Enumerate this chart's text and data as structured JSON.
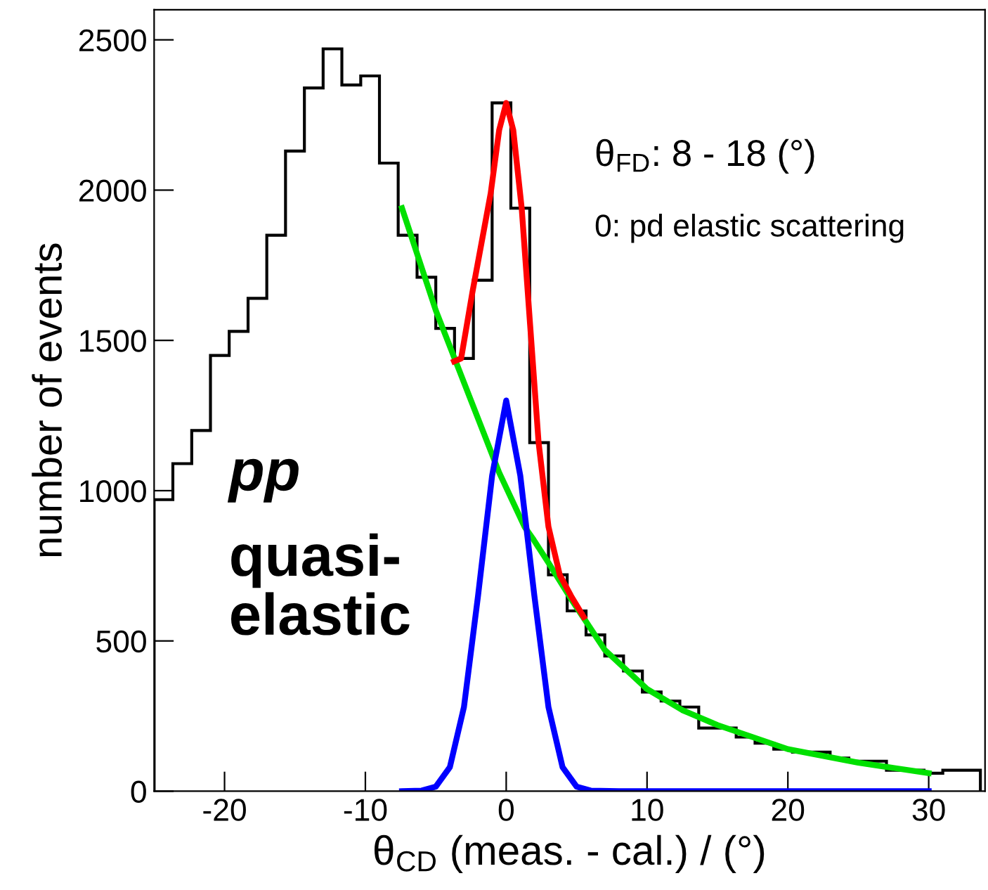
{
  "chart_data": {
    "type": "histogram",
    "xlabel": "θ$_{CD}$ (meas. - cal.) / (°)",
    "ylabel": "number of events",
    "bins": [
      -25,
      -23.67,
      -22.33,
      -21,
      -19.67,
      -18.33,
      -17,
      -15.67,
      -14.33,
      -13,
      -11.67,
      -10.33,
      -9,
      -7.67,
      -6.33,
      -5,
      -3.67,
      -2.33,
      -1,
      0.33,
      1.67,
      3,
      4.33,
      5.67,
      7,
      8.33,
      9.67,
      11,
      12.33,
      13.67,
      15,
      16.33,
      17.67,
      19,
      20.33,
      21.67,
      23,
      24.33,
      25.67,
      27,
      28.33,
      29.67,
      31,
      32.33,
      33.67
    ],
    "values": [
      970,
      1090,
      1200,
      1450,
      1530,
      1640,
      1850,
      2130,
      2340,
      2470,
      2350,
      2380,
      2090,
      1850,
      1710,
      1540,
      1440,
      1700,
      2290,
      1940,
      1160,
      720,
      600,
      520,
      450,
      400,
      330,
      300,
      280,
      210,
      210,
      180,
      160,
      140,
      130,
      130,
      110,
      100,
      100,
      70,
      70,
      60,
      70,
      70
    ],
    "color": "#000000",
    "series": [
      {
        "type": "line",
        "color": "#00e000",
        "x": [
          -7.4,
          -5,
          -2.5,
          -0.5,
          1.3,
          1.9,
          3,
          4.6,
          7,
          10,
          12.5,
          15,
          20,
          25,
          30
        ],
        "values": [
          1940,
          1600,
          1300,
          1060,
          880,
          840,
          760,
          640,
          470,
          340,
          270,
          220,
          140,
          95,
          60
        ]
      },
      {
        "type": "line",
        "color": "#ff0000",
        "x": [
          -3.7,
          -3.2,
          -2.4,
          -1.1,
          -0.5,
          0,
          0.5,
          1.1,
          1.7,
          2.3,
          3,
          3.8,
          4.6,
          5.5
        ],
        "values": [
          1430,
          1440,
          1660,
          1990,
          2200,
          2290,
          2200,
          1940,
          1550,
          1160,
          880,
          720,
          650,
          580
        ]
      },
      {
        "type": "line",
        "color": "#0000ff",
        "x": [
          -7.4,
          -6,
          -5,
          -4,
          -3,
          -2,
          -1,
          0,
          1,
          2,
          3,
          4,
          5,
          6,
          8,
          30
        ],
        "values": [
          0,
          2,
          15,
          80,
          280,
          650,
          1050,
          1300,
          1050,
          650,
          280,
          80,
          15,
          2,
          0,
          0
        ]
      }
    ],
    "annotations": [
      "θ$_{FD}$: 8 - 18 (°)",
      "0: pd elastic scattering",
      "pp",
      "quasi-\nelastic"
    ],
    "xlim": [
      -25,
      34
    ],
    "ylim": [
      0,
      2600
    ],
    "xticks": [
      -20,
      -10,
      0,
      10,
      20,
      30
    ],
    "yticks": [
      0,
      500,
      1000,
      1500,
      2000,
      2500
    ],
    "grid": false,
    "legend": false
  }
}
